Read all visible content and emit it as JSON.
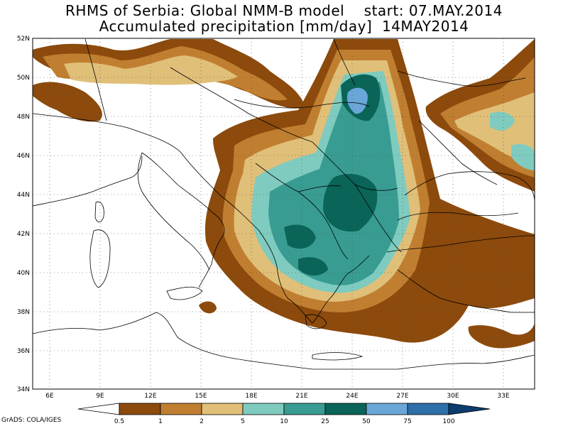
{
  "title": {
    "line1": "RHMS of Serbia: Global NMM-B model    start: 07.MAY.2014",
    "line2": "Accumulated precipitation [mm/day]  14MAY2014"
  },
  "lat_labels": [
    "52N",
    "50N",
    "48N",
    "46N",
    "44N",
    "42N",
    "40N",
    "38N",
    "36N",
    "34N"
  ],
  "lon_labels": [
    "6E",
    "9E",
    "12E",
    "15E",
    "18E",
    "21E",
    "24E",
    "27E",
    "30E",
    "33E"
  ],
  "legend": {
    "ticks": [
      "0.5",
      "1",
      "2",
      "5",
      "10",
      "25",
      "50",
      "75",
      "100"
    ],
    "colors": [
      "#8c4a0c",
      "#c07f30",
      "#e0bf79",
      "#7fcbbf",
      "#389c92",
      "#0a6458",
      "#6aa6d8",
      "#2d6fa8",
      "#0c3d6e"
    ]
  },
  "credit": "GrADS: COLA/IGES"
}
